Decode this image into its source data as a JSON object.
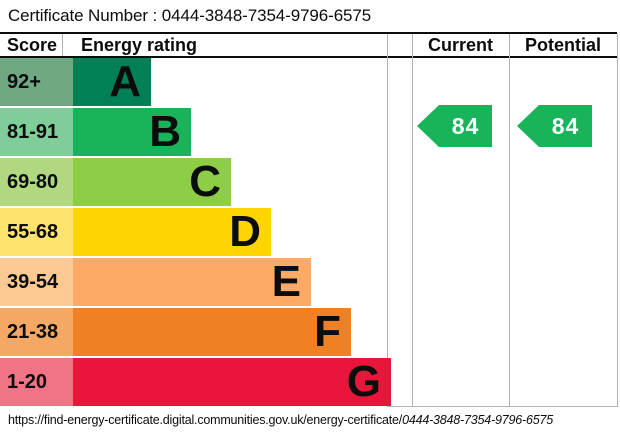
{
  "certificate_line": "Certificate Number : 0444-3848-7354-9796-6575",
  "headers": {
    "score": "Score",
    "rating": "Energy rating",
    "current": "Current",
    "potential": "Potential"
  },
  "bands": [
    {
      "letter": "A",
      "score": "92+",
      "color": "#008054",
      "score_color": "#6fa882"
    },
    {
      "letter": "B",
      "score": "81-91",
      "color": "#19b459",
      "score_color": "#7fcd99"
    },
    {
      "letter": "C",
      "score": "69-80",
      "color": "#8dce46",
      "score_color": "#b0d881"
    },
    {
      "letter": "D",
      "score": "55-68",
      "color": "#ffd500",
      "score_color": "#ffe36e"
    },
    {
      "letter": "E",
      "score": "39-54",
      "color": "#fcaa65",
      "score_color": "#fdc992"
    },
    {
      "letter": "F",
      "score": "21-38",
      "color": "#ef8023",
      "score_color": "#f4a864"
    },
    {
      "letter": "G",
      "score": "1-20",
      "color": "#e9153b",
      "score_color": "#f07386"
    }
  ],
  "current": {
    "value": "84",
    "band": "B",
    "color": "#19b459"
  },
  "potential": {
    "value": "84",
    "band": "B",
    "color": "#19b459"
  },
  "footer_url_base": "https://find-energy-certificate.digital.communities.gov.uk/energy-certificate/",
  "footer_url_number": "0444-3848-7354-9796-6575",
  "chart_data": {
    "type": "bar",
    "title": "Energy rating (EPC certificate 0444-3848-7354-9796-6575)",
    "categories": [
      "A",
      "B",
      "C",
      "D",
      "E",
      "F",
      "G"
    ],
    "score_ranges": [
      "92+",
      "81-91",
      "69-80",
      "55-68",
      "39-54",
      "21-38",
      "1-20"
    ],
    "band_colors": [
      "#008054",
      "#19b459",
      "#8dce46",
      "#ffd500",
      "#fcaa65",
      "#ef8023",
      "#e9153b"
    ],
    "series": [
      {
        "name": "Current",
        "value": 84,
        "band": "B"
      },
      {
        "name": "Potential",
        "value": 84,
        "band": "B"
      }
    ],
    "legend_position": "none",
    "grid": false
  }
}
